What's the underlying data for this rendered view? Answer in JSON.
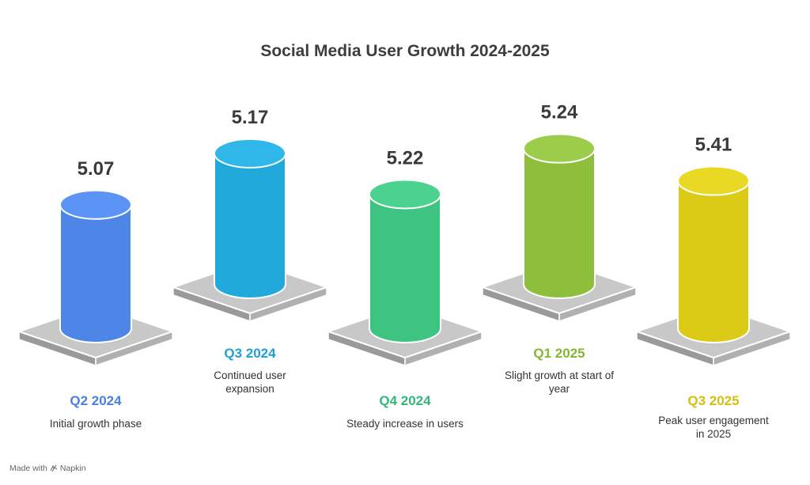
{
  "chart_data": {
    "type": "bar",
    "title": "Social Media User Growth 2024-2025",
    "categories": [
      "Q2 2024",
      "Q3 2024",
      "Q4 2024",
      "Q1 2025",
      "Q3 2025"
    ],
    "values": [
      5.07,
      5.17,
      5.22,
      5.24,
      5.41
    ],
    "value_labels": [
      "5.07",
      "5.17",
      "5.22",
      "5.24",
      "5.41"
    ],
    "descriptions": [
      [
        "Initial growth phase"
      ],
      [
        "Continued user",
        "expansion"
      ],
      [
        "Steady increase in users"
      ],
      [
        "Slight growth at start of",
        "year"
      ],
      [
        "Peak user engagement",
        "in 2025"
      ]
    ],
    "colors": [
      "#4e86e8",
      "#21a9dc",
      "#3ec481",
      "#8dbf3c",
      "#dccb16"
    ],
    "label_colors": [
      "#4a7fe0",
      "#1e9fd6",
      "#34b877",
      "#83b733",
      "#d2bf0f"
    ]
  },
  "footer": {
    "made_with": "Made with",
    "brand": "Napkin",
    "icon": "napkin-logo-icon"
  }
}
